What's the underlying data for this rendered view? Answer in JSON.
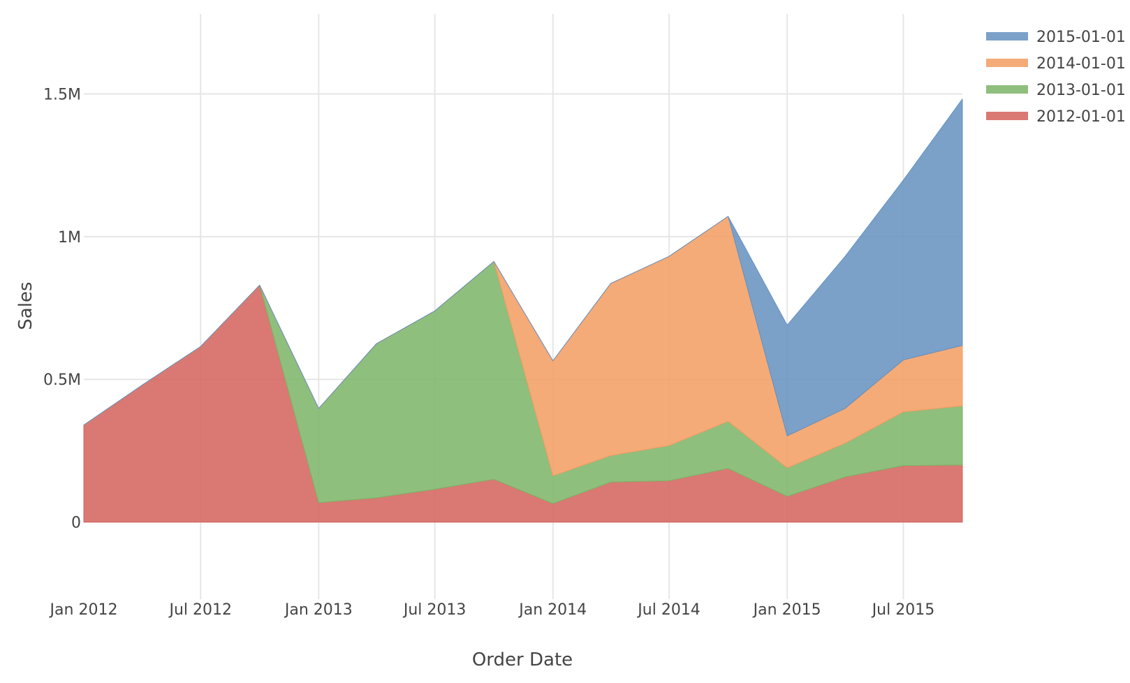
{
  "chart_data": {
    "type": "area",
    "stacked": true,
    "xlabel": "Order Date",
    "ylabel": "Sales",
    "x": [
      "2012-01-01",
      "2012-04-01",
      "2012-07-01",
      "2012-10-01",
      "2013-01-01",
      "2013-04-01",
      "2013-07-01",
      "2013-10-01",
      "2014-01-01",
      "2014-04-01",
      "2014-07-01",
      "2014-10-01",
      "2015-01-01",
      "2015-04-01",
      "2015-07-01",
      "2015-10-01"
    ],
    "x_ticks": [
      {
        "date": "2012-01-01",
        "label": "Jan 2012"
      },
      {
        "date": "2012-07-01",
        "label": "Jul 2012"
      },
      {
        "date": "2013-01-01",
        "label": "Jan 2013"
      },
      {
        "date": "2013-07-01",
        "label": "Jul 2013"
      },
      {
        "date": "2014-01-01",
        "label": "Jan 2014"
      },
      {
        "date": "2014-07-01",
        "label": "Jul 2014"
      },
      {
        "date": "2015-01-01",
        "label": "Jan 2015"
      },
      {
        "date": "2015-07-01",
        "label": "Jul 2015"
      }
    ],
    "y_ticks": [
      {
        "value": 0,
        "label": "0"
      },
      {
        "value": 500000,
        "label": "0.5M"
      },
      {
        "value": 1000000,
        "label": "1M"
      },
      {
        "value": 1500000,
        "label": "1.5M"
      }
    ],
    "xlim": [
      "2012-01-01",
      "2015-10-01"
    ],
    "ylim": [
      -270000,
      1780000
    ],
    "grid": true,
    "legend_position": "top-right",
    "series": [
      {
        "name": "2012-01-01",
        "color": "#d3625b",
        "values": [
          340000,
          480000,
          615000,
          830000,
          68000,
          85000,
          115000,
          150000,
          65000,
          140000,
          145000,
          188000,
          90000,
          158000,
          198000,
          200000
        ]
      },
      {
        "name": "2013-01-01",
        "color": "#7bb466",
        "values": [
          0,
          0,
          0,
          0,
          330000,
          540000,
          625000,
          763000,
          97000,
          93000,
          123000,
          165000,
          100000,
          118000,
          188000,
          207000
        ]
      },
      {
        "name": "2014-01-01",
        "color": "#f29c60",
        "values": [
          0,
          0,
          0,
          0,
          0,
          0,
          0,
          0,
          403000,
          603000,
          663000,
          718000,
          112000,
          122000,
          182000,
          212000
        ]
      },
      {
        "name": "2015-01-01",
        "color": "#6490c0",
        "values": [
          0,
          0,
          0,
          0,
          0,
          0,
          0,
          0,
          0,
          0,
          0,
          0,
          388000,
          532000,
          630000,
          863000
        ]
      }
    ]
  }
}
